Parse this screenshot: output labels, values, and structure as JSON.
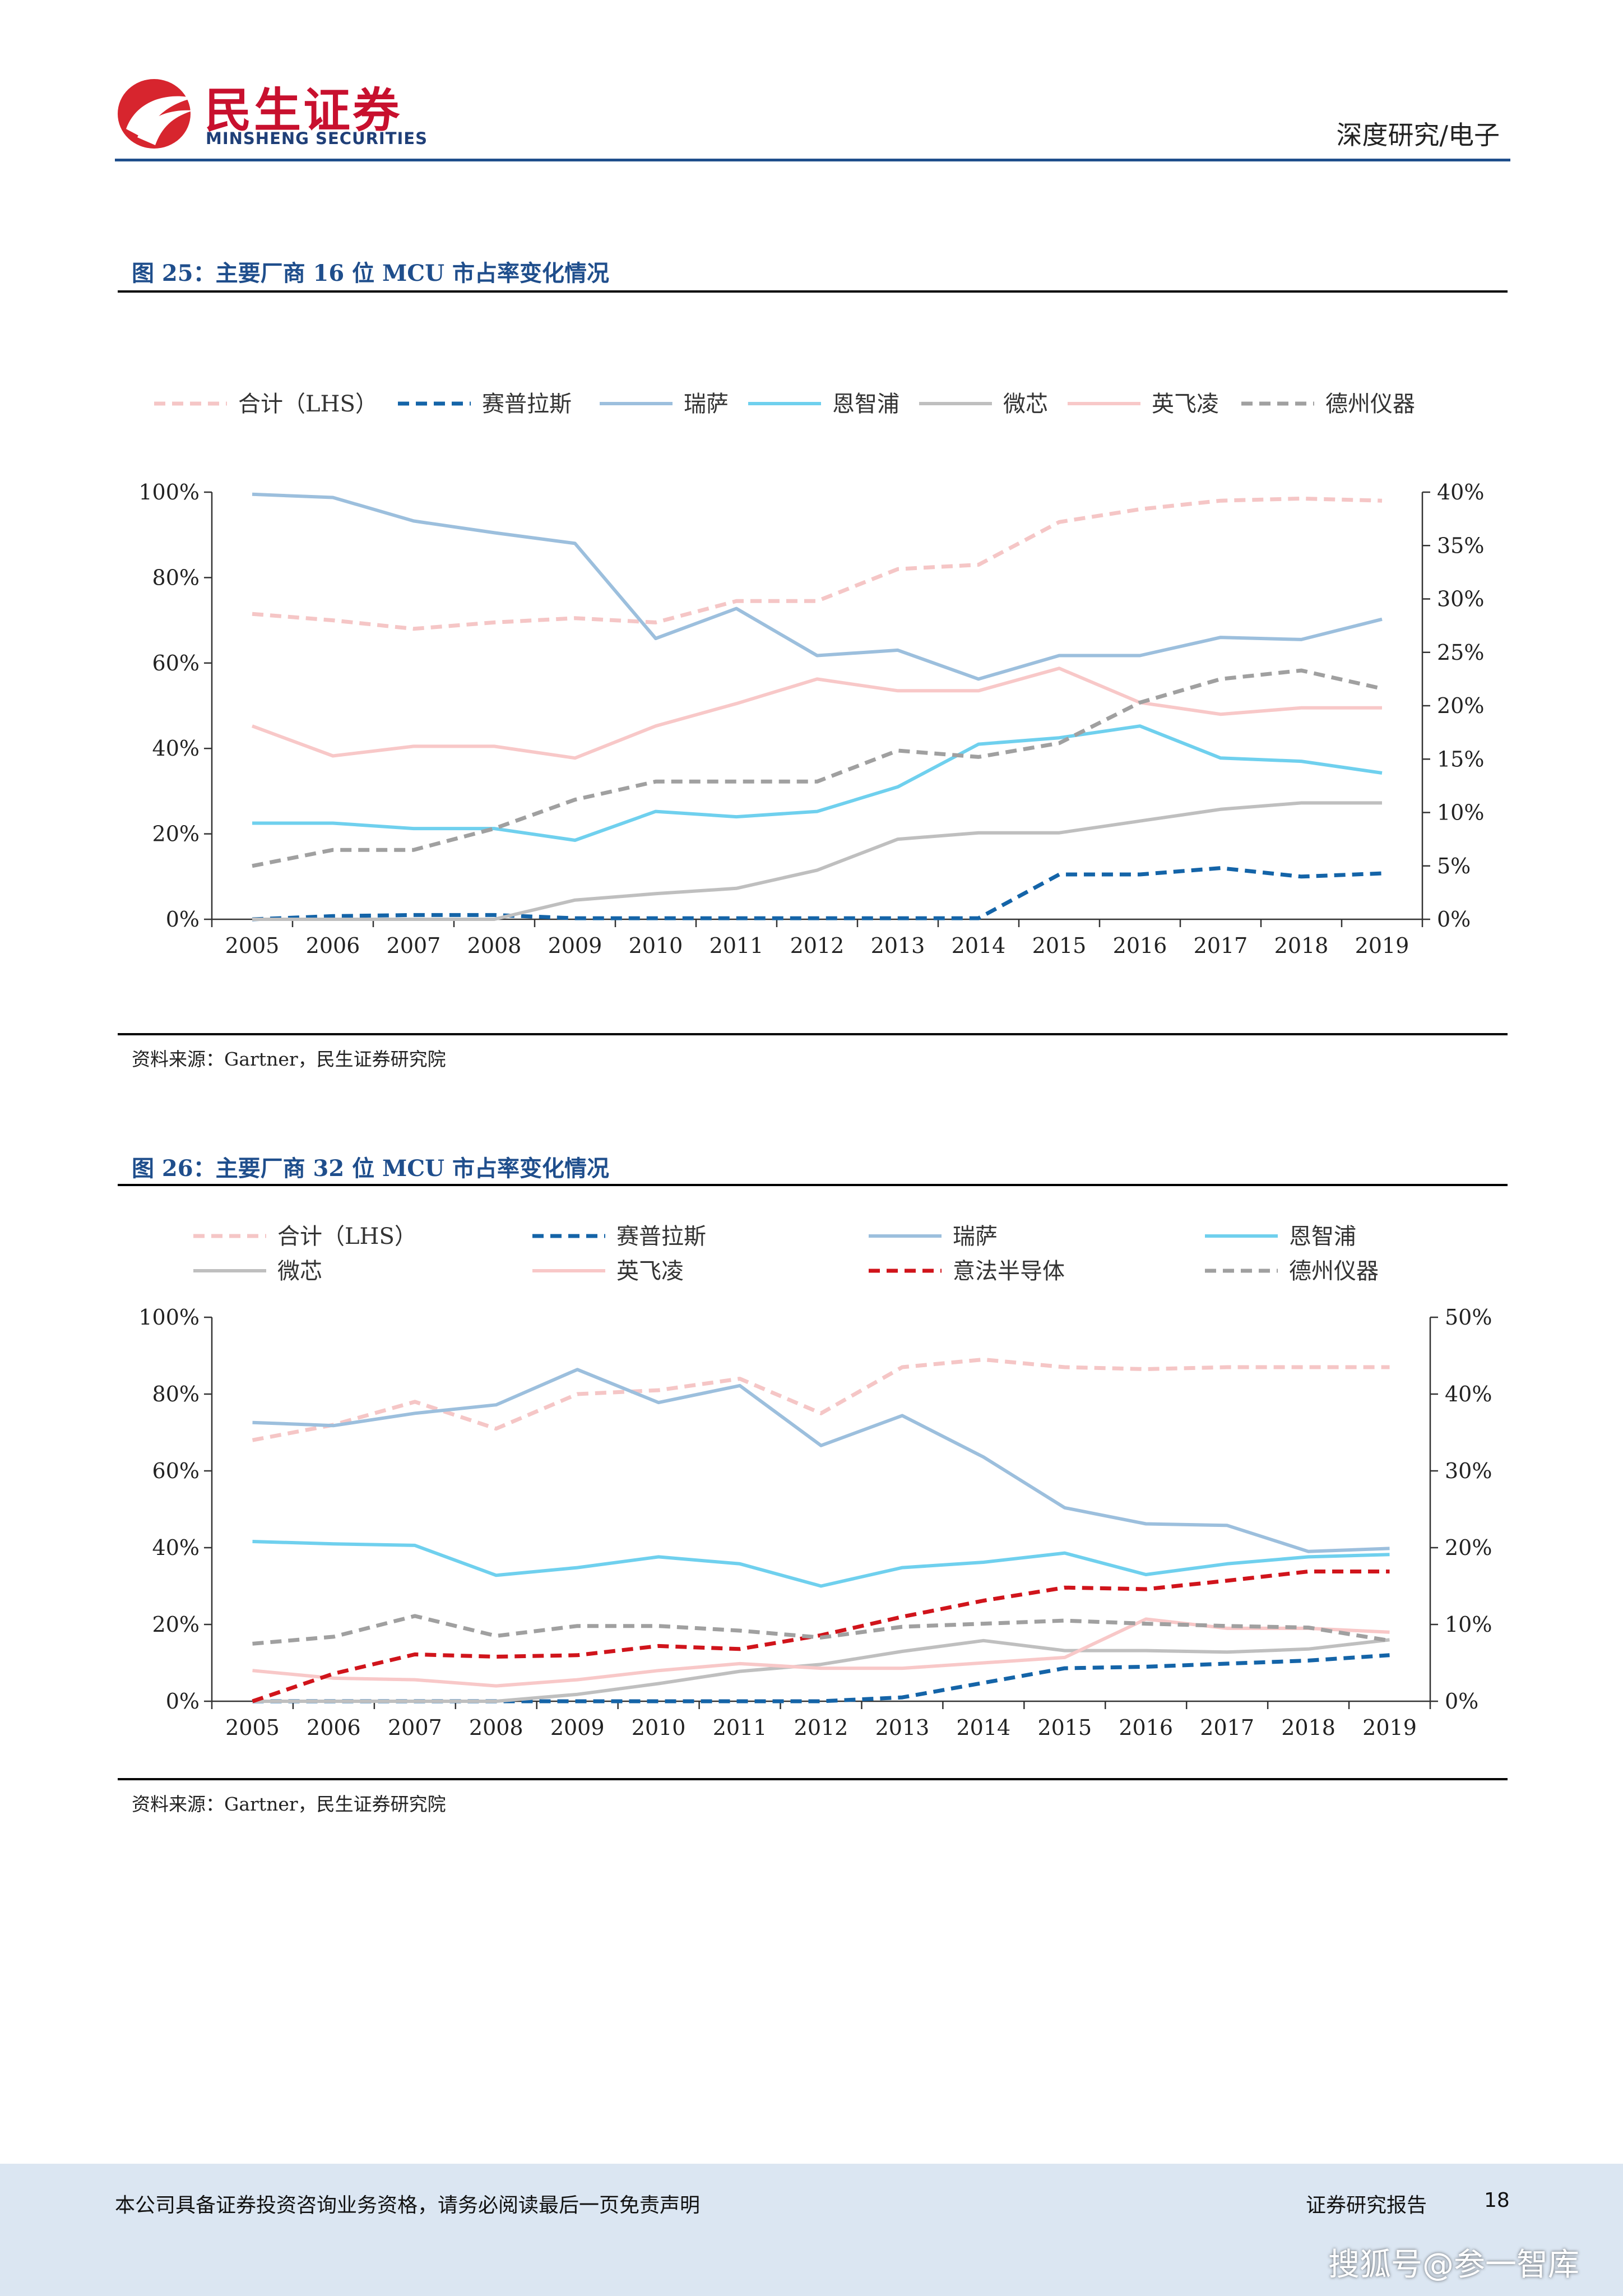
{
  "header": {
    "logo_cn": "民生证券",
    "logo_en": "MINSHENG SECURITIES",
    "report_type": "深度研究/电子"
  },
  "figures": [
    {
      "title": "图 25：主要厂商 16 位 MCU 市占率变化情况",
      "source": "资料来源：Gartner，民生证券研究院"
    },
    {
      "title": "图 26：主要厂商 32 位 MCU 市占率变化情况",
      "source": "资料来源：Gartner，民生证券研究院"
    }
  ],
  "chart_data": [
    {
      "type": "line",
      "x": [
        "2005",
        "2006",
        "2007",
        "2008",
        "2009",
        "2010",
        "2011",
        "2012",
        "2013",
        "2014",
        "2015",
        "2016",
        "2017",
        "2018",
        "2019"
      ],
      "y_left_ticks": [
        "0%",
        "20%",
        "40%",
        "60%",
        "80%",
        "100%"
      ],
      "y_right_ticks": [
        "0%",
        "5%",
        "10%",
        "15%",
        "20%",
        "25%",
        "30%",
        "35%",
        "40%"
      ],
      "ylim_left": [
        0,
        100
      ],
      "ylim_right": [
        0,
        40
      ],
      "legend_position": "top",
      "grid": false,
      "series": [
        {
          "name": "合计（LHS）",
          "axis": "left",
          "color": "#f5c6c6",
          "dash": true,
          "values": [
            71.5,
            70,
            68,
            69.5,
            70.5,
            69.5,
            74.5,
            74.5,
            82,
            83,
            93,
            96,
            98,
            98.5,
            98
          ]
        },
        {
          "name": "赛普拉斯",
          "axis": "right",
          "color": "#1464a8",
          "dash": true,
          "values": [
            0,
            0.3,
            0.4,
            0.4,
            0.1,
            0.1,
            0.1,
            0.1,
            0.1,
            0.1,
            4.2,
            4.2,
            4.8,
            4,
            4.3
          ]
        },
        {
          "name": "瑞萨",
          "axis": "right",
          "color": "#9cbfdd",
          "dash": false,
          "values": [
            39.8,
            39.5,
            37.3,
            36.2,
            35.2,
            26.3,
            29.1,
            24.7,
            25.2,
            22.5,
            24.7,
            24.7,
            26.4,
            26.2,
            28.1
          ]
        },
        {
          "name": "恩智浦",
          "axis": "right",
          "color": "#6fd0ee",
          "dash": false,
          "values": [
            9,
            9,
            8.5,
            8.5,
            7.4,
            10.1,
            9.6,
            10.1,
            12.4,
            16.4,
            17,
            18.1,
            15.1,
            14.8,
            13.7
          ]
        },
        {
          "name": "微芯",
          "axis": "right",
          "color": "#bfbfbf",
          "dash": false,
          "values": [
            0,
            0,
            0,
            0,
            1.8,
            2.4,
            2.9,
            4.6,
            7.5,
            8.1,
            8.1,
            9.2,
            10.3,
            10.9,
            10.9
          ]
        },
        {
          "name": "英飞凌",
          "axis": "right",
          "color": "#f8c8c8",
          "dash": false,
          "values": [
            18.1,
            15.3,
            16.2,
            16.2,
            15.1,
            18.1,
            20.2,
            22.5,
            21.4,
            21.4,
            23.5,
            20.3,
            19.2,
            19.8,
            19.8
          ]
        },
        {
          "name": "德州仪器",
          "axis": "right",
          "color": "#a0a0a0",
          "dash": true,
          "values": [
            5,
            6.5,
            6.5,
            8.5,
            11.2,
            12.9,
            12.9,
            12.9,
            15.8,
            15.2,
            16.5,
            20.3,
            22.5,
            23.3,
            21.6
          ]
        }
      ]
    },
    {
      "type": "line",
      "x": [
        "2005",
        "2006",
        "2007",
        "2008",
        "2009",
        "2010",
        "2011",
        "2012",
        "2013",
        "2014",
        "2015",
        "2016",
        "2017",
        "2018",
        "2019"
      ],
      "y_left_ticks": [
        "0%",
        "20%",
        "40%",
        "60%",
        "80%",
        "100%"
      ],
      "y_right_ticks": [
        "0%",
        "10%",
        "20%",
        "30%",
        "40%",
        "50%"
      ],
      "ylim_left": [
        0,
        100
      ],
      "ylim_right": [
        0,
        50
      ],
      "legend_position": "top",
      "grid": false,
      "series": [
        {
          "name": "合计（LHS）",
          "axis": "left",
          "color": "#f5c6c6",
          "dash": true,
          "values": [
            68,
            72,
            78,
            71,
            80,
            81,
            84,
            75,
            87,
            89,
            87,
            86.5,
            87,
            87,
            87
          ]
        },
        {
          "name": "赛普拉斯",
          "axis": "right",
          "color": "#1464a8",
          "dash": true,
          "values": [
            0,
            0,
            0,
            0,
            0,
            0,
            0,
            0,
            0.5,
            2.4,
            4.3,
            4.5,
            4.9,
            5.3,
            6
          ]
        },
        {
          "name": "瑞萨",
          "axis": "right",
          "color": "#9cbfdd",
          "dash": false,
          "values": [
            36.3,
            35.9,
            37.5,
            38.6,
            43.2,
            38.9,
            41.1,
            33.3,
            37.2,
            31.8,
            25.2,
            23.1,
            22.9,
            19.5,
            19.9
          ]
        },
        {
          "name": "恩智浦",
          "axis": "right",
          "color": "#6fd0ee",
          "dash": false,
          "values": [
            20.8,
            20.5,
            20.3,
            16.4,
            17.4,
            18.8,
            17.9,
            15,
            17.4,
            18.1,
            19.3,
            16.5,
            17.9,
            18.8,
            19.1
          ]
        },
        {
          "name": "微芯",
          "axis": "right",
          "color": "#bfbfbf",
          "dash": false,
          "values": [
            0,
            0,
            0,
            0,
            0.9,
            2.3,
            3.9,
            4.8,
            6.5,
            7.9,
            6.6,
            6.6,
            6.4,
            6.8,
            8
          ]
        },
        {
          "name": "英飞凌",
          "axis": "right",
          "color": "#f8c8c8",
          "dash": false,
          "values": [
            4,
            3,
            2.8,
            2,
            2.8,
            4,
            4.9,
            4.3,
            4.3,
            5,
            5.7,
            10.7,
            9.5,
            9.5,
            9
          ]
        },
        {
          "name": "意法半导体",
          "axis": "right",
          "color": "#d0141b",
          "dash": true,
          "values": [
            0,
            3.6,
            6.1,
            5.8,
            6,
            7.2,
            6.8,
            8.6,
            11,
            13.1,
            14.8,
            14.6,
            15.7,
            16.9,
            16.9
          ]
        },
        {
          "name": "德州仪器",
          "axis": "right",
          "color": "#a0a0a0",
          "dash": true,
          "values": [
            7.5,
            8.4,
            11.1,
            8.5,
            9.8,
            9.8,
            9.2,
            8.3,
            9.7,
            10.1,
            10.5,
            10.1,
            9.8,
            9.6,
            7.9
          ]
        }
      ]
    }
  ],
  "footer": {
    "disclaimer": "本公司具备证券投资咨询业务资格，请务必阅读最后一页免责声明",
    "label": "证券研究报告",
    "page": "18"
  },
  "watermark": "搜狐号@参一智库",
  "colors": {
    "brand_red": "#c8102e",
    "brand_blue": "#1f4e8c"
  }
}
